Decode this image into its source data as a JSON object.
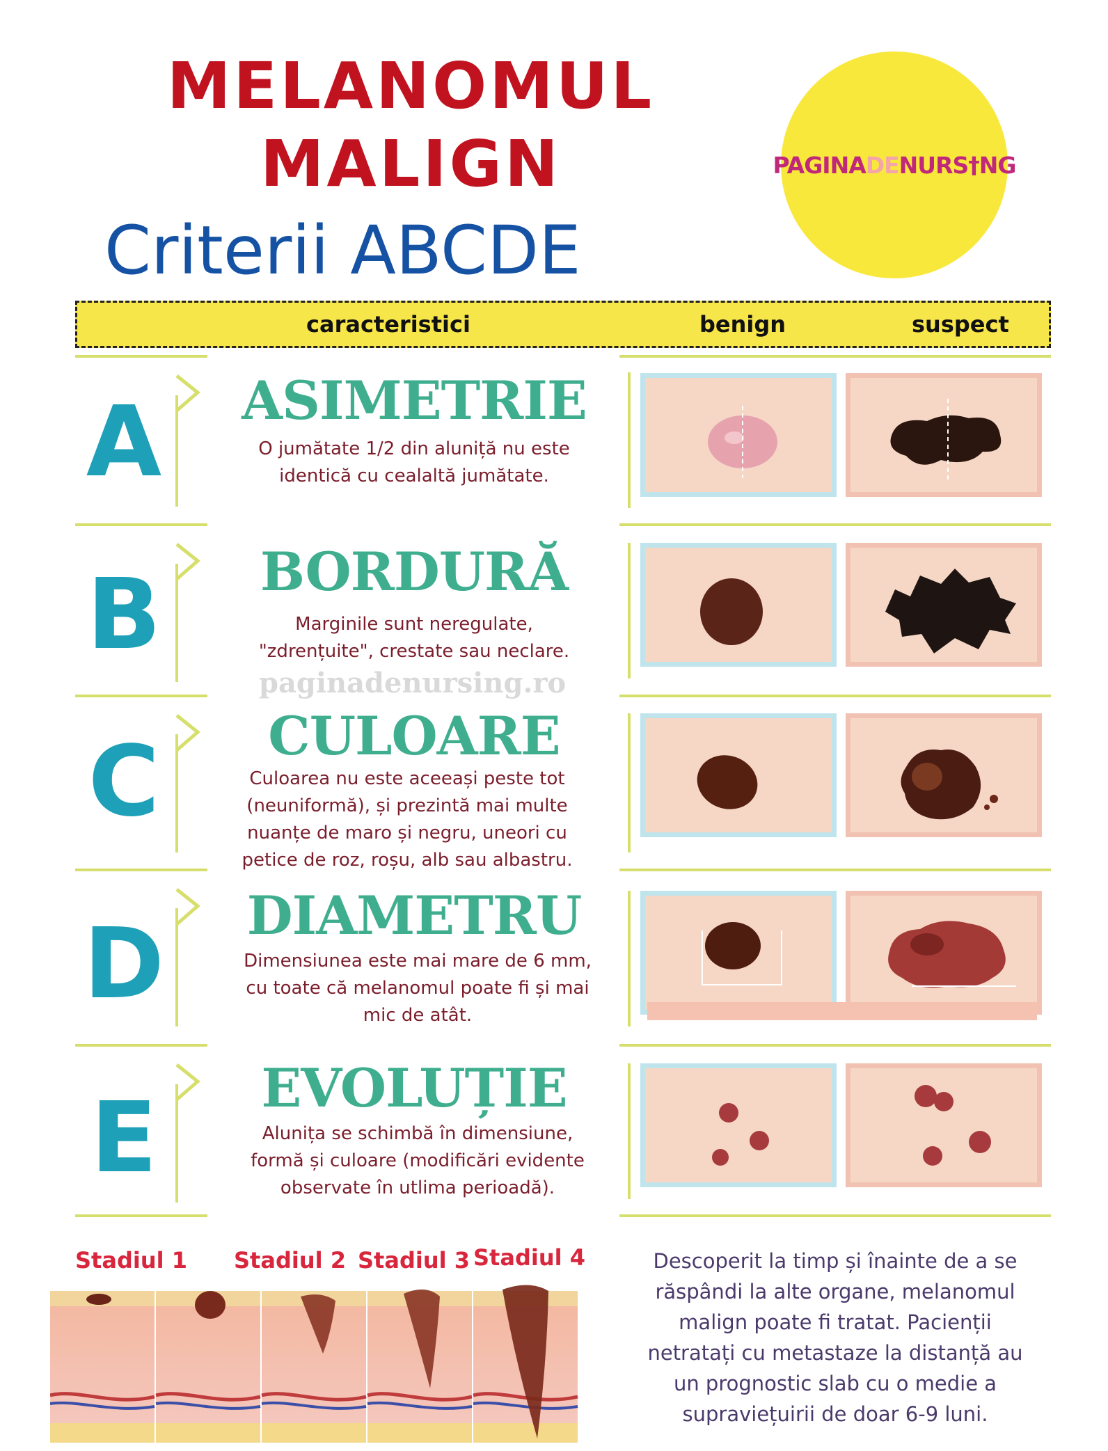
{
  "header": {
    "title_line1": "MELANOMUL",
    "title_line2": "MALIGN",
    "subtitle": "Criterii ABCDE",
    "logo": {
      "part1": "PAGINA",
      "part2": "DE",
      "part3": "NURS",
      "part4": "NG",
      "icon": "syringe-icon"
    }
  },
  "table_header": {
    "characteristics": "caracteristici",
    "benign": "benign",
    "suspect": "suspect"
  },
  "watermark": "paginadenursing.ro",
  "criteria": [
    {
      "letter": "A",
      "title": "ASIMETRIE",
      "description": "O jumătate 1/2 din aluniță nu este identică cu cealaltă jumătate."
    },
    {
      "letter": "B",
      "title": "BORDURĂ",
      "description": "Marginile sunt neregulate, \"zdrențuite\", crestate sau neclare."
    },
    {
      "letter": "C",
      "title": "CULOARE",
      "description": "Culoarea nu este aceeași peste tot (neuniformă), și prezintă mai multe nuanțe de maro și negru, uneori cu petice de roz, roșu, alb sau albastru."
    },
    {
      "letter": "D",
      "title": "DIAMETRU",
      "description": "Dimensiunea este mai mare de 6 mm, cu toate că melanomul poate fi și mai mic de atât."
    },
    {
      "letter": "E",
      "title": "EVOLUȚIE",
      "description": "Alunița se schimbă în dimensiune, formă și culoare (modificări evidente observate în utlima perioadă)."
    }
  ],
  "stages": [
    "Stadiul 1",
    "Stadiul 2",
    "Stadiul 3",
    "Stadiul 4"
  ],
  "bottom_text": "Descoperit la timp și înainte de a se răspândi la alte organe, melanomul malign poate fi tratat. Pacienții netratați  cu metastaze la distanță au un prognostic slab cu o medie a supraviețuirii de doar 6-9 luni.",
  "colors": {
    "title_red": "#c1121f",
    "subtitle_blue": "#1552a4",
    "logo_yellow": "#f9e83c",
    "criteria_green": "#3fae8f",
    "letter_teal": "#1ea1b8",
    "line_yellow": "#d7df6c"
  }
}
